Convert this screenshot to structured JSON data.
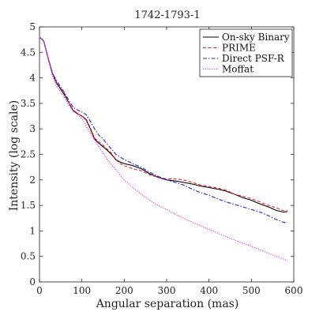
{
  "chart_data": {
    "type": "line",
    "title": "1742-1793-1",
    "xlabel": "Angular separation (mas)",
    "ylabel": "Intensity (log scale)",
    "xlim": [
      0,
      600
    ],
    "ylim": [
      0,
      5
    ],
    "x_ticks": [
      0,
      100,
      200,
      300,
      400,
      500,
      600
    ],
    "y_ticks": [
      0,
      0.5,
      1,
      1.5,
      2,
      2.5,
      3,
      3.5,
      4,
      4.5,
      5
    ],
    "grid": false,
    "legend_position": "top-right",
    "series": [
      {
        "name": "On-sky Binary",
        "color": "#000000",
        "style": "solid",
        "points": [
          [
            0,
            4.8
          ],
          [
            10,
            4.72
          ],
          [
            20,
            4.4
          ],
          [
            30,
            4.1
          ],
          [
            40,
            3.9
          ],
          [
            50,
            3.78
          ],
          [
            60,
            3.65
          ],
          [
            70,
            3.5
          ],
          [
            80,
            3.35
          ],
          [
            90,
            3.3
          ],
          [
            100,
            3.25
          ],
          [
            110,
            3.18
          ],
          [
            120,
            3.0
          ],
          [
            130,
            2.8
          ],
          [
            140,
            2.72
          ],
          [
            150,
            2.65
          ],
          [
            160,
            2.58
          ],
          [
            170,
            2.5
          ],
          [
            180,
            2.4
          ],
          [
            190,
            2.35
          ],
          [
            200,
            2.32
          ],
          [
            220,
            2.28
          ],
          [
            240,
            2.22
          ],
          [
            260,
            2.12
          ],
          [
            280,
            2.05
          ],
          [
            300,
            2.0
          ],
          [
            320,
            1.98
          ],
          [
            340,
            1.95
          ],
          [
            360,
            1.92
          ],
          [
            380,
            1.88
          ],
          [
            400,
            1.85
          ],
          [
            420,
            1.82
          ],
          [
            440,
            1.78
          ],
          [
            460,
            1.72
          ],
          [
            480,
            1.65
          ],
          [
            500,
            1.6
          ],
          [
            520,
            1.53
          ],
          [
            540,
            1.47
          ],
          [
            560,
            1.4
          ],
          [
            575,
            1.37
          ],
          [
            585,
            1.38
          ]
        ]
      },
      {
        "name": "PRIME",
        "color": "#e8262b",
        "style": "dashed",
        "points": [
          [
            0,
            4.8
          ],
          [
            10,
            4.72
          ],
          [
            20,
            4.4
          ],
          [
            30,
            4.1
          ],
          [
            40,
            3.92
          ],
          [
            50,
            3.8
          ],
          [
            60,
            3.68
          ],
          [
            70,
            3.5
          ],
          [
            80,
            3.37
          ],
          [
            90,
            3.3
          ],
          [
            100,
            3.25
          ],
          [
            110,
            3.2
          ],
          [
            120,
            3.02
          ],
          [
            130,
            2.82
          ],
          [
            140,
            2.75
          ],
          [
            150,
            2.68
          ],
          [
            160,
            2.6
          ],
          [
            170,
            2.52
          ],
          [
            180,
            2.4
          ],
          [
            190,
            2.32
          ],
          [
            200,
            2.28
          ],
          [
            220,
            2.22
          ],
          [
            240,
            2.18
          ],
          [
            260,
            2.1
          ],
          [
            280,
            2.05
          ],
          [
            300,
            2.02
          ],
          [
            320,
            2.02
          ],
          [
            340,
            2.0
          ],
          [
            360,
            1.95
          ],
          [
            380,
            1.9
          ],
          [
            400,
            1.87
          ],
          [
            420,
            1.84
          ],
          [
            440,
            1.8
          ],
          [
            460,
            1.72
          ],
          [
            480,
            1.68
          ],
          [
            500,
            1.63
          ],
          [
            520,
            1.57
          ],
          [
            540,
            1.5
          ],
          [
            560,
            1.45
          ],
          [
            575,
            1.4
          ],
          [
            585,
            1.4
          ]
        ]
      },
      {
        "name": "Direct PSF-R",
        "color": "#1d2ad6",
        "style": "dashdot",
        "points": [
          [
            0,
            4.8
          ],
          [
            10,
            4.72
          ],
          [
            20,
            4.4
          ],
          [
            30,
            4.1
          ],
          [
            40,
            3.95
          ],
          [
            50,
            3.82
          ],
          [
            60,
            3.7
          ],
          [
            70,
            3.55
          ],
          [
            80,
            3.42
          ],
          [
            90,
            3.37
          ],
          [
            100,
            3.33
          ],
          [
            110,
            3.28
          ],
          [
            120,
            3.15
          ],
          [
            130,
            3.0
          ],
          [
            140,
            2.88
          ],
          [
            150,
            2.8
          ],
          [
            160,
            2.7
          ],
          [
            170,
            2.6
          ],
          [
            180,
            2.5
          ],
          [
            190,
            2.45
          ],
          [
            200,
            2.4
          ],
          [
            220,
            2.32
          ],
          [
            240,
            2.25
          ],
          [
            260,
            2.15
          ],
          [
            280,
            2.07
          ],
          [
            300,
            2.0
          ],
          [
            320,
            1.95
          ],
          [
            340,
            1.9
          ],
          [
            360,
            1.82
          ],
          [
            380,
            1.75
          ],
          [
            400,
            1.7
          ],
          [
            420,
            1.63
          ],
          [
            440,
            1.57
          ],
          [
            460,
            1.52
          ],
          [
            480,
            1.47
          ],
          [
            500,
            1.42
          ],
          [
            520,
            1.37
          ],
          [
            540,
            1.3
          ],
          [
            560,
            1.22
          ],
          [
            575,
            1.17
          ],
          [
            585,
            1.16
          ]
        ]
      },
      {
        "name": "Moffat",
        "color": "#ff1fff",
        "style": "dotted",
        "points": [
          [
            0,
            4.8
          ],
          [
            10,
            4.72
          ],
          [
            20,
            4.4
          ],
          [
            30,
            4.05
          ],
          [
            40,
            3.85
          ],
          [
            50,
            3.72
          ],
          [
            60,
            3.6
          ],
          [
            70,
            3.45
          ],
          [
            80,
            3.35
          ],
          [
            100,
            3.2
          ],
          [
            120,
            2.92
          ],
          [
            140,
            2.65
          ],
          [
            160,
            2.4
          ],
          [
            180,
            2.2
          ],
          [
            200,
            2.0
          ],
          [
            220,
            1.85
          ],
          [
            240,
            1.72
          ],
          [
            260,
            1.6
          ],
          [
            280,
            1.5
          ],
          [
            300,
            1.42
          ],
          [
            320,
            1.33
          ],
          [
            340,
            1.25
          ],
          [
            360,
            1.17
          ],
          [
            380,
            1.1
          ],
          [
            400,
            1.03
          ],
          [
            420,
            0.96
          ],
          [
            440,
            0.89
          ],
          [
            460,
            0.82
          ],
          [
            480,
            0.76
          ],
          [
            500,
            0.7
          ],
          [
            520,
            0.63
          ],
          [
            540,
            0.56
          ],
          [
            560,
            0.5
          ],
          [
            575,
            0.45
          ],
          [
            585,
            0.42
          ]
        ]
      }
    ]
  }
}
